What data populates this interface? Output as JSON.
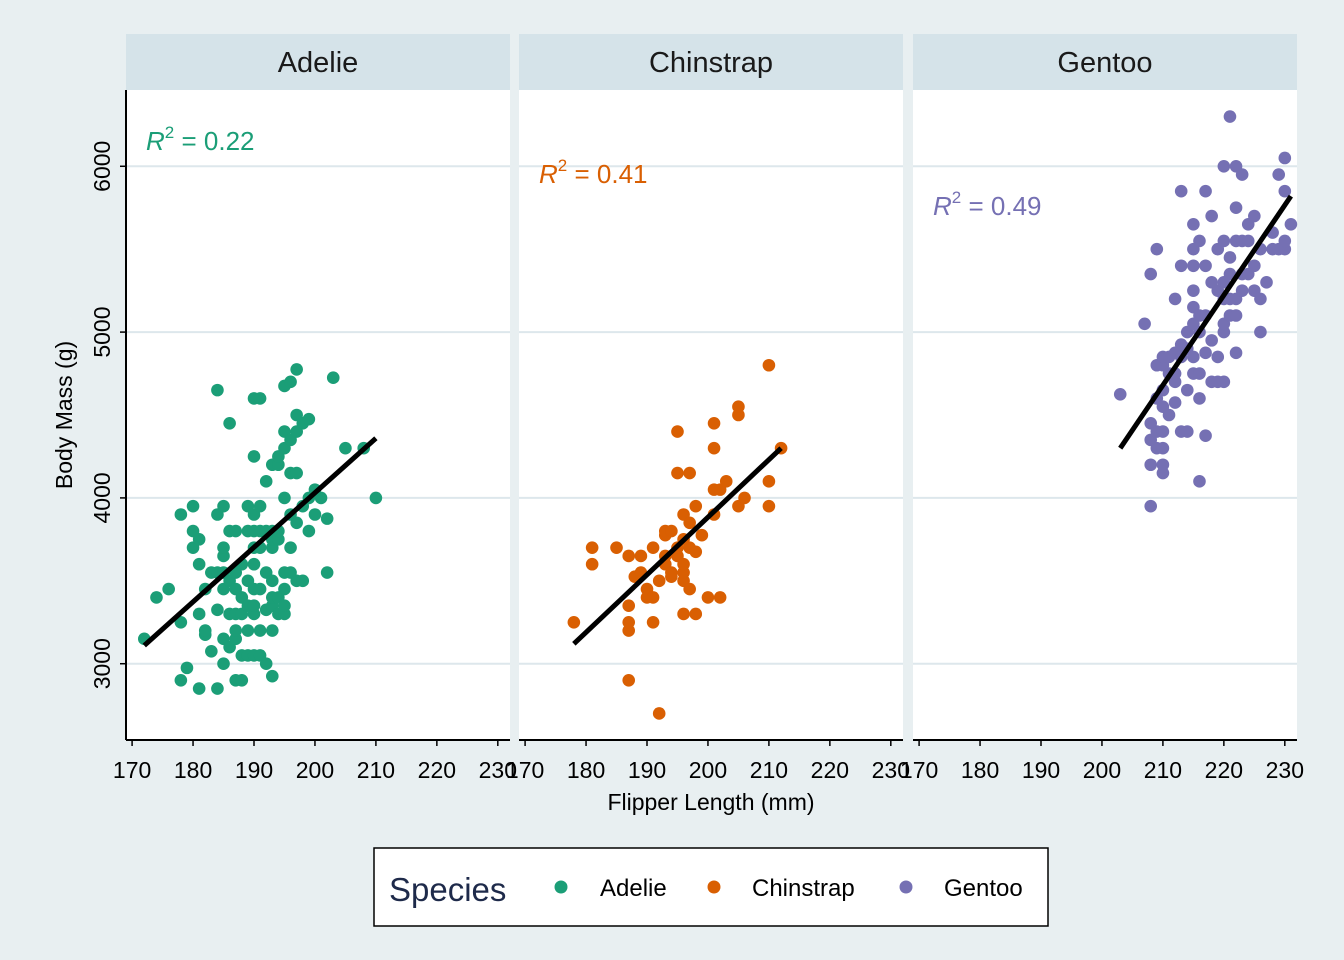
{
  "chart_data": {
    "type": "scatter",
    "facet_by": "Species",
    "xlabel": "Flipper Length (mm)",
    "ylabel": "Body Mass (g)",
    "xlim": [
      169,
      232
    ],
    "ylim": [
      2540,
      6460
    ],
    "x_ticks": [
      "170",
      "180",
      "190",
      "200",
      "210",
      "220",
      "230"
    ],
    "y_ticks": [
      "3000",
      "4000",
      "5000",
      "6000"
    ],
    "grid": true,
    "legend": {
      "title": "Species",
      "position": "bottom",
      "entries": [
        "Adelie",
        "Chinstrap",
        "Gentoo"
      ]
    },
    "panels": [
      {
        "title": "Adelie",
        "color": "#1b9e77",
        "r2_label": "R",
        "r2_sup": "2",
        "r2_value": " = 0.22",
        "fit": {
          "x": [
            172,
            210
          ],
          "y": [
            3110,
            4360
          ]
        },
        "points": [
          [
            172,
            3150
          ],
          [
            174,
            3400
          ],
          [
            176,
            3450
          ],
          [
            178,
            2900
          ],
          [
            178,
            3250
          ],
          [
            178,
            3900
          ],
          [
            179,
            2975
          ],
          [
            180,
            3700
          ],
          [
            180,
            3800
          ],
          [
            180,
            3950
          ],
          [
            181,
            2850
          ],
          [
            181,
            3300
          ],
          [
            181,
            3600
          ],
          [
            181,
            3750
          ],
          [
            182,
            3175
          ],
          [
            182,
            3200
          ],
          [
            182,
            3450
          ],
          [
            183,
            3075
          ],
          [
            183,
            3550
          ],
          [
            184,
            2850
          ],
          [
            184,
            3325
          ],
          [
            184,
            3550
          ],
          [
            184,
            3900
          ],
          [
            184,
            4650
          ],
          [
            185,
            3000
          ],
          [
            185,
            3150
          ],
          [
            185,
            3450
          ],
          [
            185,
            3550
          ],
          [
            185,
            3650
          ],
          [
            185,
            3700
          ],
          [
            185,
            3950
          ],
          [
            186,
            3100
          ],
          [
            186,
            3300
          ],
          [
            186,
            3500
          ],
          [
            186,
            3800
          ],
          [
            186,
            4450
          ],
          [
            187,
            2900
          ],
          [
            187,
            3150
          ],
          [
            187,
            3200
          ],
          [
            187,
            3300
          ],
          [
            187,
            3450
          ],
          [
            187,
            3550
          ],
          [
            187,
            3800
          ],
          [
            188,
            2900
          ],
          [
            188,
            3050
          ],
          [
            188,
            3300
          ],
          [
            188,
            3400
          ],
          [
            188,
            3600
          ],
          [
            189,
            3050
          ],
          [
            189,
            3200
          ],
          [
            189,
            3350
          ],
          [
            189,
            3500
          ],
          [
            189,
            3800
          ],
          [
            189,
            3950
          ],
          [
            190,
            3050
          ],
          [
            190,
            3300
          ],
          [
            190,
            3350
          ],
          [
            190,
            3450
          ],
          [
            190,
            3600
          ],
          [
            190,
            3700
          ],
          [
            190,
            3800
          ],
          [
            190,
            3900
          ],
          [
            190,
            4250
          ],
          [
            190,
            4600
          ],
          [
            191,
            3050
          ],
          [
            191,
            3200
          ],
          [
            191,
            3450
          ],
          [
            191,
            3700
          ],
          [
            191,
            3800
          ],
          [
            191,
            3950
          ],
          [
            191,
            4600
          ],
          [
            192,
            3000
          ],
          [
            192,
            3325
          ],
          [
            192,
            3550
          ],
          [
            192,
            3800
          ],
          [
            192,
            4100
          ],
          [
            193,
            2925
          ],
          [
            193,
            3200
          ],
          [
            193,
            3350
          ],
          [
            193,
            3400
          ],
          [
            193,
            3500
          ],
          [
            193,
            3700
          ],
          [
            193,
            3750
          ],
          [
            193,
            3800
          ],
          [
            193,
            4200
          ],
          [
            194,
            3300
          ],
          [
            194,
            3400
          ],
          [
            194,
            3750
          ],
          [
            194,
            3800
          ],
          [
            194,
            4200
          ],
          [
            194,
            4250
          ],
          [
            195,
            3300
          ],
          [
            195,
            3350
          ],
          [
            195,
            3450
          ],
          [
            195,
            3550
          ],
          [
            195,
            4000
          ],
          [
            195,
            4300
          ],
          [
            195,
            4400
          ],
          [
            195,
            4675
          ],
          [
            196,
            3550
          ],
          [
            196,
            3700
          ],
          [
            196,
            3900
          ],
          [
            196,
            4150
          ],
          [
            196,
            4350
          ],
          [
            196,
            4700
          ],
          [
            197,
            3500
          ],
          [
            197,
            3850
          ],
          [
            197,
            4150
          ],
          [
            197,
            4400
          ],
          [
            197,
            4500
          ],
          [
            197,
            4775
          ],
          [
            198,
            3500
          ],
          [
            198,
            3950
          ],
          [
            198,
            4450
          ],
          [
            199,
            3800
          ],
          [
            199,
            4000
          ],
          [
            199,
            4475
          ],
          [
            200,
            3900
          ],
          [
            200,
            4050
          ],
          [
            201,
            4000
          ],
          [
            202,
            3550
          ],
          [
            202,
            3875
          ],
          [
            203,
            4725
          ],
          [
            205,
            4300
          ],
          [
            208,
            4300
          ],
          [
            210,
            4000
          ]
        ]
      },
      {
        "title": "Chinstrap",
        "color": "#d95f02",
        "r2_label": "R",
        "r2_sup": "2",
        "r2_value": " = 0.41",
        "fit": {
          "x": [
            178,
            212
          ],
          "y": [
            3120,
            4300
          ]
        },
        "points": [
          [
            178,
            3250
          ],
          [
            181,
            3600
          ],
          [
            181,
            3700
          ],
          [
            185,
            3700
          ],
          [
            187,
            2900
          ],
          [
            187,
            3200
          ],
          [
            187,
            3250
          ],
          [
            187,
            3350
          ],
          [
            187,
            3650
          ],
          [
            188,
            3525
          ],
          [
            189,
            3550
          ],
          [
            189,
            3650
          ],
          [
            190,
            3450
          ],
          [
            190,
            3400
          ],
          [
            191,
            3700
          ],
          [
            191,
            3400
          ],
          [
            191,
            3250
          ],
          [
            192,
            2700
          ],
          [
            192,
            3500
          ],
          [
            193,
            3600
          ],
          [
            193,
            3650
          ],
          [
            193,
            3775
          ],
          [
            193,
            3800
          ],
          [
            194,
            3525
          ],
          [
            194,
            3550
          ],
          [
            194,
            3800
          ],
          [
            195,
            3650
          ],
          [
            195,
            3700
          ],
          [
            195,
            4150
          ],
          [
            195,
            4400
          ],
          [
            196,
            3300
          ],
          [
            196,
            3500
          ],
          [
            196,
            3550
          ],
          [
            196,
            3600
          ],
          [
            196,
            3750
          ],
          [
            196,
            3900
          ],
          [
            197,
            3450
          ],
          [
            197,
            3700
          ],
          [
            197,
            3850
          ],
          [
            197,
            4150
          ],
          [
            198,
            3300
          ],
          [
            198,
            3675
          ],
          [
            198,
            3950
          ],
          [
            199,
            3775
          ],
          [
            200,
            3400
          ],
          [
            201,
            3900
          ],
          [
            201,
            4050
          ],
          [
            201,
            4300
          ],
          [
            201,
            4450
          ],
          [
            202,
            3400
          ],
          [
            202,
            4050
          ],
          [
            203,
            4100
          ],
          [
            205,
            3950
          ],
          [
            205,
            4500
          ],
          [
            205,
            4550
          ],
          [
            206,
            4000
          ],
          [
            210,
            3950
          ],
          [
            210,
            4100
          ],
          [
            210,
            4800
          ],
          [
            212,
            4300
          ]
        ]
      },
      {
        "title": "Gentoo",
        "color": "#7570b3",
        "r2_label": "R",
        "r2_sup": "2",
        "r2_value": " = 0.49",
        "fit": {
          "x": [
            203,
            231
          ],
          "y": [
            4300,
            5820
          ]
        },
        "points": [
          [
            203,
            4625
          ],
          [
            207,
            5050
          ],
          [
            208,
            3950
          ],
          [
            208,
            4200
          ],
          [
            208,
            4350
          ],
          [
            208,
            4450
          ],
          [
            208,
            5350
          ],
          [
            209,
            4300
          ],
          [
            209,
            4400
          ],
          [
            209,
            4600
          ],
          [
            209,
            4800
          ],
          [
            209,
            5500
          ],
          [
            210,
            4150
          ],
          [
            210,
            4200
          ],
          [
            210,
            4300
          ],
          [
            210,
            4400
          ],
          [
            210,
            4550
          ],
          [
            210,
            4650
          ],
          [
            210,
            4800
          ],
          [
            210,
            4850
          ],
          [
            211,
            4500
          ],
          [
            211,
            4750
          ],
          [
            211,
            4850
          ],
          [
            212,
            4575
          ],
          [
            212,
            4700
          ],
          [
            212,
            4750
          ],
          [
            212,
            4875
          ],
          [
            212,
            5200
          ],
          [
            213,
            4400
          ],
          [
            213,
            4850
          ],
          [
            213,
            4925
          ],
          [
            213,
            5400
          ],
          [
            213,
            5850
          ],
          [
            214,
            4400
          ],
          [
            214,
            4650
          ],
          [
            214,
            4900
          ],
          [
            214,
            5000
          ],
          [
            215,
            4750
          ],
          [
            215,
            4850
          ],
          [
            215,
            5050
          ],
          [
            215,
            5150
          ],
          [
            215,
            5250
          ],
          [
            215,
            5400
          ],
          [
            215,
            5500
          ],
          [
            215,
            5650
          ],
          [
            216,
            4100
          ],
          [
            216,
            4600
          ],
          [
            216,
            4750
          ],
          [
            216,
            5000
          ],
          [
            216,
            5100
          ],
          [
            216,
            5550
          ],
          [
            217,
            4375
          ],
          [
            217,
            4875
          ],
          [
            217,
            5100
          ],
          [
            217,
            5400
          ],
          [
            217,
            5850
          ],
          [
            218,
            4700
          ],
          [
            218,
            4950
          ],
          [
            218,
            5300
          ],
          [
            218,
            5700
          ],
          [
            219,
            4700
          ],
          [
            219,
            4850
          ],
          [
            219,
            5250
          ],
          [
            219,
            5500
          ],
          [
            220,
            4700
          ],
          [
            220,
            5000
          ],
          [
            220,
            5050
          ],
          [
            220,
            5200
          ],
          [
            220,
            5300
          ],
          [
            220,
            5550
          ],
          [
            220,
            6000
          ],
          [
            221,
            5100
          ],
          [
            221,
            5200
          ],
          [
            221,
            5350
          ],
          [
            221,
            5450
          ],
          [
            221,
            6300
          ],
          [
            222,
            4875
          ],
          [
            222,
            5100
          ],
          [
            222,
            5200
          ],
          [
            222,
            5550
          ],
          [
            222,
            5750
          ],
          [
            222,
            6000
          ],
          [
            223,
            5250
          ],
          [
            223,
            5350
          ],
          [
            223,
            5550
          ],
          [
            223,
            5950
          ],
          [
            224,
            5350
          ],
          [
            224,
            5550
          ],
          [
            224,
            5650
          ],
          [
            225,
            5250
          ],
          [
            225,
            5400
          ],
          [
            225,
            5700
          ],
          [
            226,
            5000
          ],
          [
            226,
            5200
          ],
          [
            226,
            5500
          ],
          [
            227,
            5300
          ],
          [
            228,
            5500
          ],
          [
            228,
            5600
          ],
          [
            229,
            5500
          ],
          [
            229,
            5950
          ],
          [
            230,
            5500
          ],
          [
            230,
            5550
          ],
          [
            230,
            5850
          ],
          [
            230,
            6050
          ],
          [
            231,
            5650
          ]
        ]
      }
    ]
  }
}
